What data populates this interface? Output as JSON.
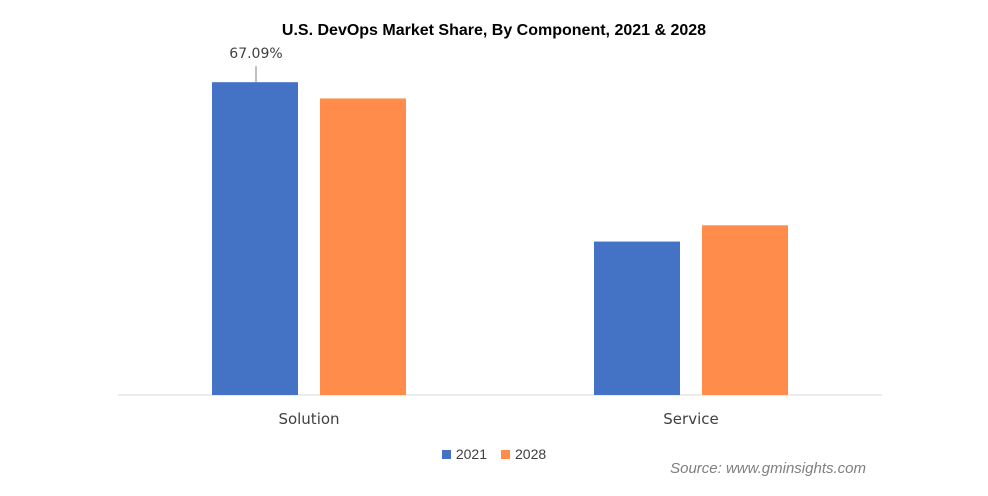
{
  "chart_data": {
    "type": "bar",
    "title": "U.S. DevOps Market Share, By Component, 2021 & 2028",
    "categories": [
      "Solution",
      "Service"
    ],
    "series": [
      {
        "name": "2021",
        "values": [
          67.09,
          32.91
        ],
        "color": "#4472C4"
      },
      {
        "name": "2028",
        "values": [
          63.6,
          36.4
        ],
        "color": "#FF8C4B"
      }
    ],
    "data_labels": [
      {
        "series": 0,
        "category": 0,
        "text": "67.09%"
      }
    ],
    "ylim": [
      0,
      80
    ],
    "grid": false,
    "legend_position": "bottom"
  },
  "source": "Source: www.gminsights.com"
}
